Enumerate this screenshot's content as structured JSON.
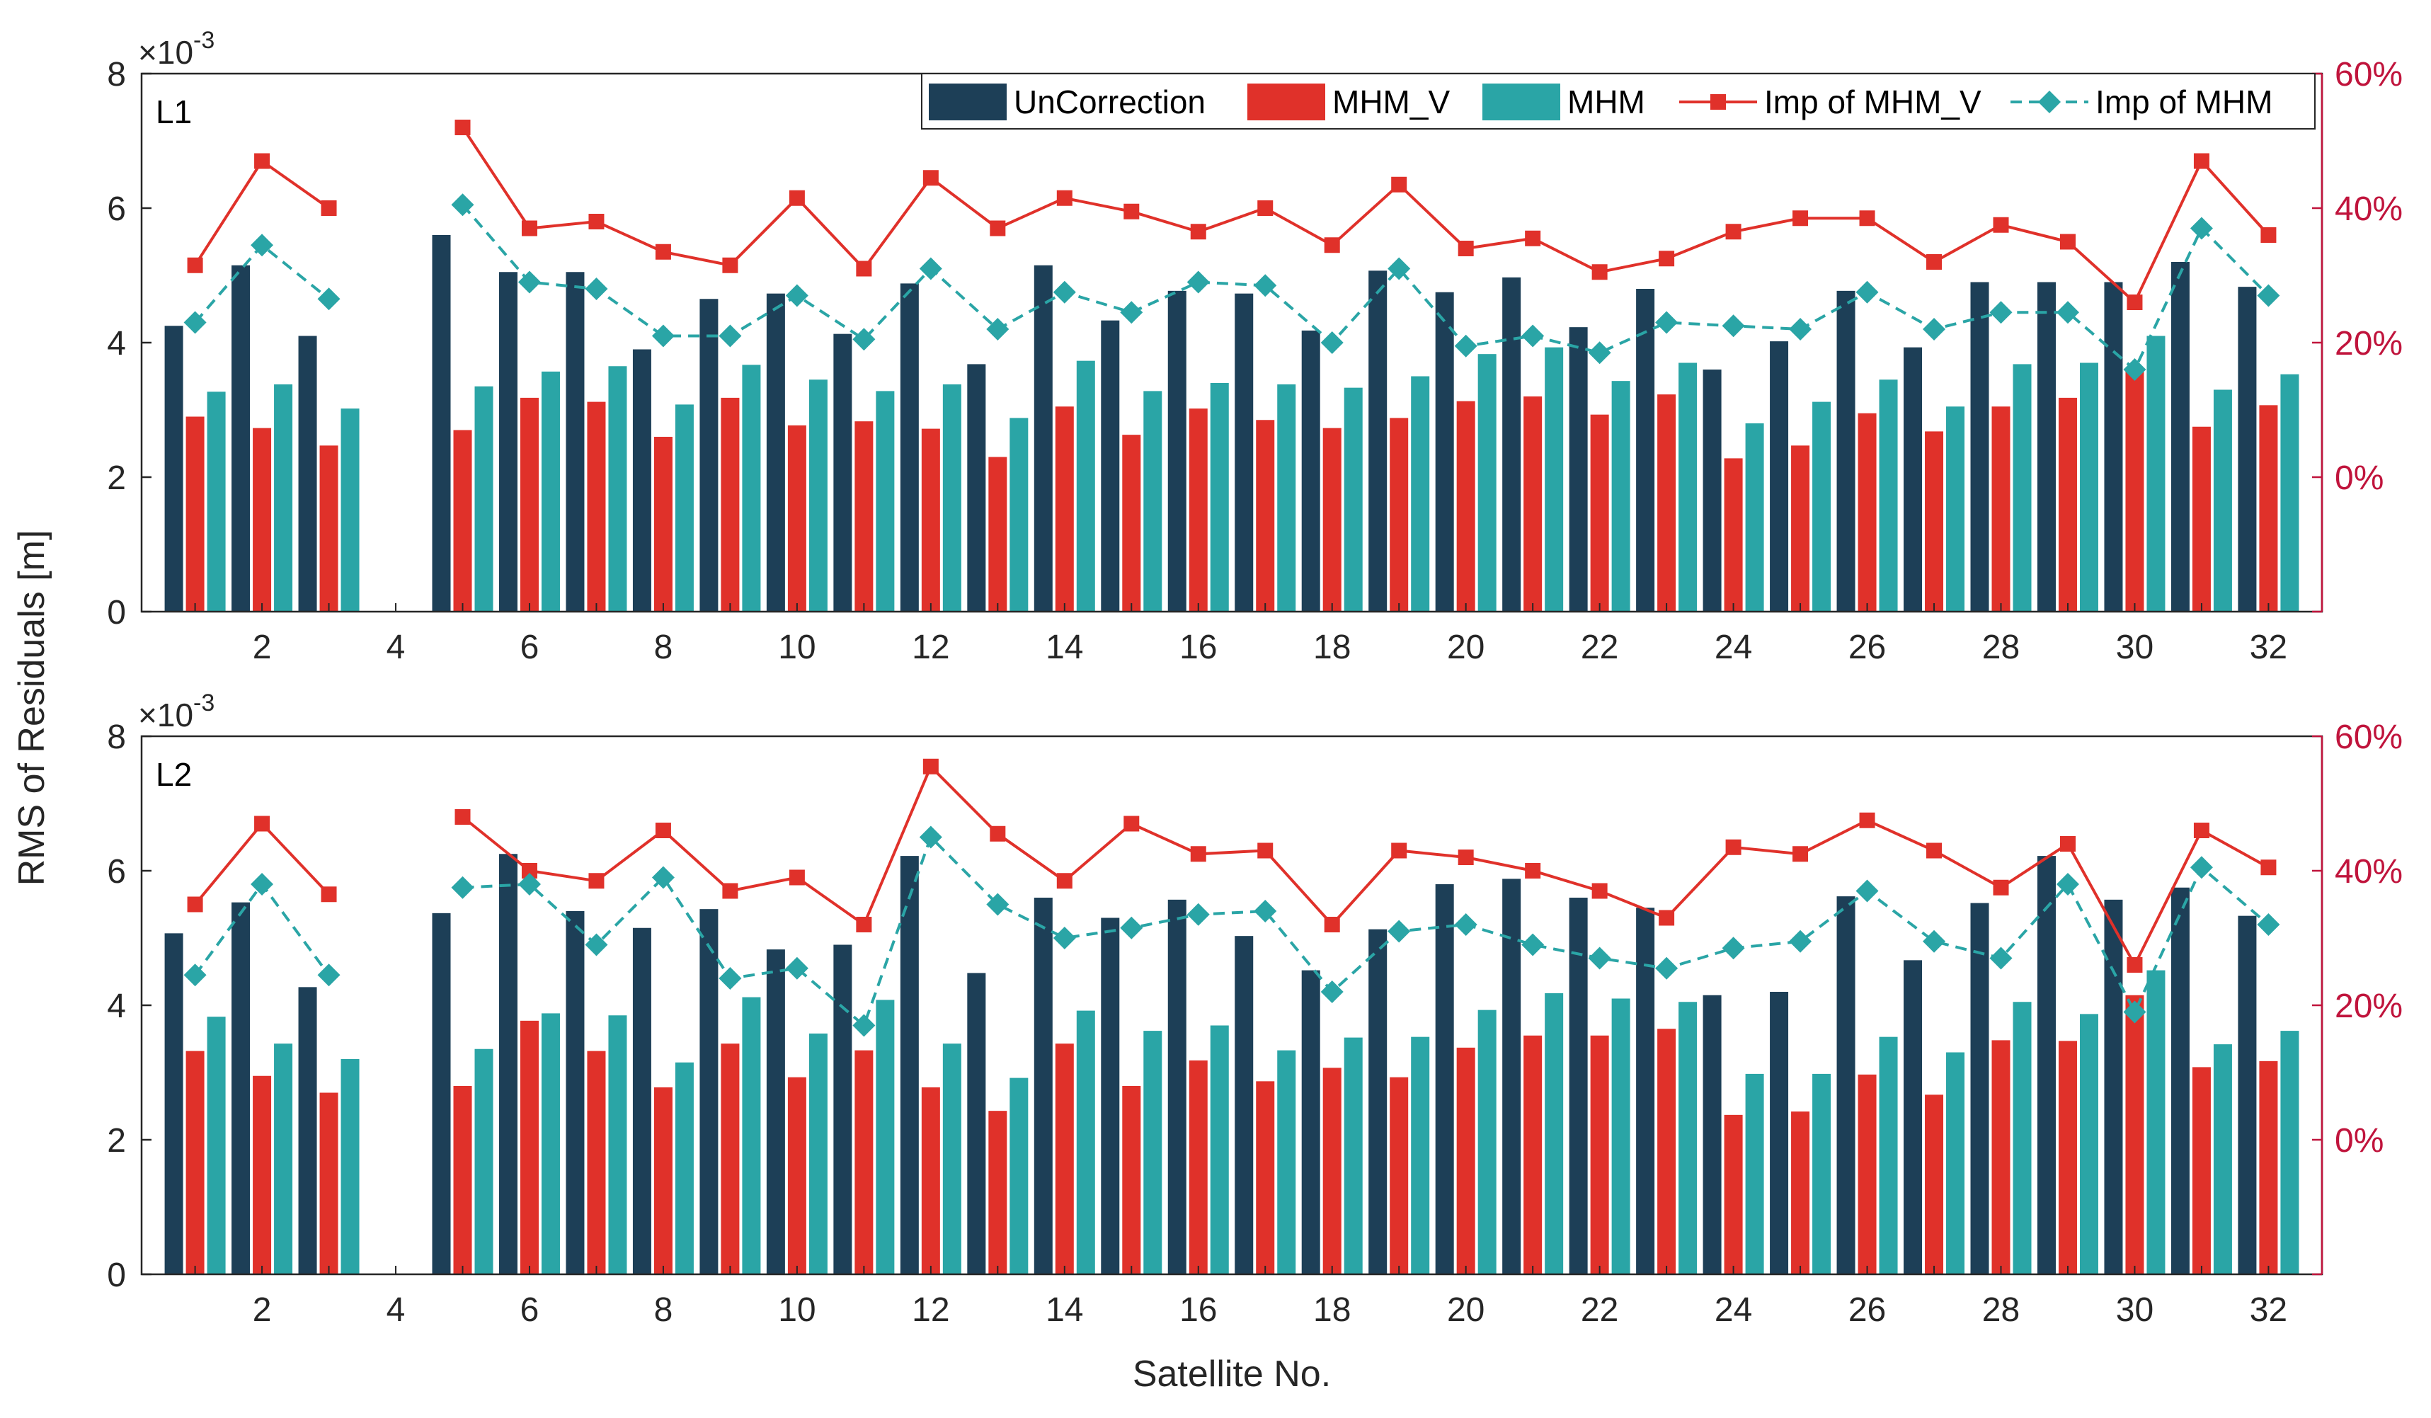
{
  "chart_data": {
    "type": "bar",
    "xlabel": "Satellite No.",
    "ylabel": "RMS of Residuals [m]",
    "y_exponent_base": "×10",
    "y_exponent_power": "-3",
    "categories": [
      1,
      2,
      3,
      4,
      5,
      6,
      7,
      8,
      9,
      10,
      11,
      12,
      13,
      14,
      15,
      16,
      17,
      18,
      19,
      20,
      21,
      22,
      23,
      24,
      25,
      26,
      27,
      28,
      29,
      30,
      31,
      32
    ],
    "x_ticks": [
      2,
      4,
      6,
      8,
      10,
      12,
      14,
      16,
      18,
      20,
      22,
      24,
      26,
      28,
      30,
      32
    ],
    "xlim": [
      0.2,
      32.8
    ],
    "ylim_left": [
      0,
      8
    ],
    "y_ticks_left": [
      0,
      2,
      4,
      6,
      8
    ],
    "ylim_right": [
      -20,
      60
    ],
    "y_ticks_right": [
      0,
      20,
      40,
      60
    ],
    "y_tick_labels_right": [
      "0%",
      "20%",
      "40%",
      "60%"
    ],
    "legend": {
      "position": "top-right",
      "entries": [
        "UnCorrection",
        "MHM_V",
        "MHM",
        "Imp of MHM_V",
        "Imp of MHM"
      ]
    },
    "colors": {
      "uncorrection": "#1d3f57",
      "mhm_v": "#e0312a",
      "mhm": "#2aa5a6",
      "imp_mhm_v": "#e0312a",
      "imp_mhm": "#2aa5a6",
      "right_axis": "#c0143c"
    },
    "panels": [
      {
        "label": "L1",
        "bar_series": [
          {
            "name": "UnCorrection",
            "values": [
              4.25,
              5.15,
              4.1,
              0,
              5.6,
              5.05,
              5.05,
              3.9,
              4.65,
              4.73,
              4.13,
              4.88,
              3.68,
              5.15,
              4.33,
              4.77,
              4.73,
              4.18,
              5.07,
              4.75,
              4.97,
              4.23,
              4.8,
              3.6,
              4.02,
              4.77,
              3.93,
              4.9,
              4.9,
              4.9,
              5.2,
              4.83
            ]
          },
          {
            "name": "MHM_V",
            "values": [
              2.9,
              2.73,
              2.47,
              0,
              2.7,
              3.18,
              3.12,
              2.6,
              3.18,
              2.77,
              2.83,
              2.72,
              2.3,
              3.05,
              2.63,
              3.02,
              2.85,
              2.73,
              2.88,
              3.13,
              3.2,
              2.93,
              3.23,
              2.28,
              2.47,
              2.95,
              2.68,
              3.05,
              3.18,
              3.6,
              2.75,
              3.07
            ]
          },
          {
            "name": "MHM",
            "values": [
              3.27,
              3.38,
              3.02,
              0,
              3.35,
              3.57,
              3.65,
              3.08,
              3.67,
              3.45,
              3.28,
              3.38,
              2.88,
              3.73,
              3.28,
              3.4,
              3.38,
              3.33,
              3.5,
              3.83,
              3.93,
              3.43,
              3.7,
              2.8,
              3.12,
              3.45,
              3.05,
              3.68,
              3.7,
              4.1,
              3.3,
              3.53
            ]
          }
        ],
        "line_series": [
          {
            "name": "Imp of MHM_V",
            "values": [
              31.5,
              47,
              40,
              null,
              52,
              37,
              38,
              33.5,
              31.5,
              41.5,
              31,
              44.5,
              37,
              41.5,
              39.5,
              36.5,
              40,
              34.5,
              43.5,
              34,
              35.5,
              30.5,
              32.5,
              36.5,
              38.5,
              38.5,
              32,
              37.5,
              35,
              26,
              47,
              36
            ]
          },
          {
            "name": "Imp of MHM",
            "values": [
              23,
              34.5,
              26.5,
              null,
              40.5,
              29,
              28,
              21,
              21,
              27,
              20.5,
              31,
              22,
              27.5,
              24.5,
              29,
              28.5,
              20,
              31,
              19.5,
              21,
              18.5,
              23,
              22.5,
              22,
              27.5,
              22,
              24.5,
              24.5,
              16,
              37,
              27
            ]
          }
        ]
      },
      {
        "label": "L2",
        "bar_series": [
          {
            "name": "UnCorrection",
            "values": [
              5.07,
              5.53,
              4.27,
              0,
              5.37,
              6.25,
              5.4,
              5.15,
              5.43,
              4.83,
              4.9,
              6.22,
              4.48,
              5.6,
              5.3,
              5.57,
              5.03,
              4.52,
              5.13,
              5.8,
              5.88,
              5.6,
              5.45,
              4.15,
              4.2,
              5.62,
              4.67,
              5.52,
              6.22,
              5.57,
              5.75,
              5.33
            ]
          },
          {
            "name": "MHM_V",
            "values": [
              3.32,
              2.95,
              2.7,
              0,
              2.8,
              3.77,
              3.32,
              2.78,
              3.43,
              2.93,
              3.33,
              2.78,
              2.43,
              3.43,
              2.8,
              3.18,
              2.87,
              3.07,
              2.93,
              3.37,
              3.55,
              3.55,
              3.65,
              2.37,
              2.42,
              2.97,
              2.67,
              3.48,
              3.47,
              4.15,
              3.08,
              3.17
            ]
          },
          {
            "name": "MHM",
            "values": [
              3.83,
              3.43,
              3.2,
              0,
              3.35,
              3.88,
              3.85,
              3.15,
              4.12,
              3.58,
              4.08,
              3.43,
              2.92,
              3.92,
              3.62,
              3.7,
              3.33,
              3.52,
              3.53,
              3.93,
              4.18,
              4.1,
              4.05,
              2.98,
              2.98,
              3.53,
              3.3,
              4.05,
              3.87,
              4.52,
              3.42,
              3.62
            ]
          }
        ],
        "line_series": [
          {
            "name": "Imp of MHM_V",
            "values": [
              35,
              47,
              36.5,
              null,
              48,
              40,
              38.5,
              46,
              37,
              39,
              32,
              55.5,
              45.5,
              38.5,
              47,
              42.5,
              43,
              32,
              43,
              42,
              40,
              37,
              33,
              43.5,
              42.5,
              47.5,
              43,
              37.5,
              44,
              26,
              46,
              40.5
            ]
          },
          {
            "name": "Imp of MHM",
            "values": [
              24.5,
              38,
              24.5,
              null,
              37.5,
              38,
              29,
              39,
              24,
              25.5,
              17,
              45,
              35,
              30,
              31.5,
              33.5,
              34,
              22,
              31,
              32,
              29,
              27,
              25.5,
              28.5,
              29.5,
              37,
              29.5,
              27,
              38,
              19,
              40.5,
              32
            ]
          }
        ]
      }
    ]
  }
}
